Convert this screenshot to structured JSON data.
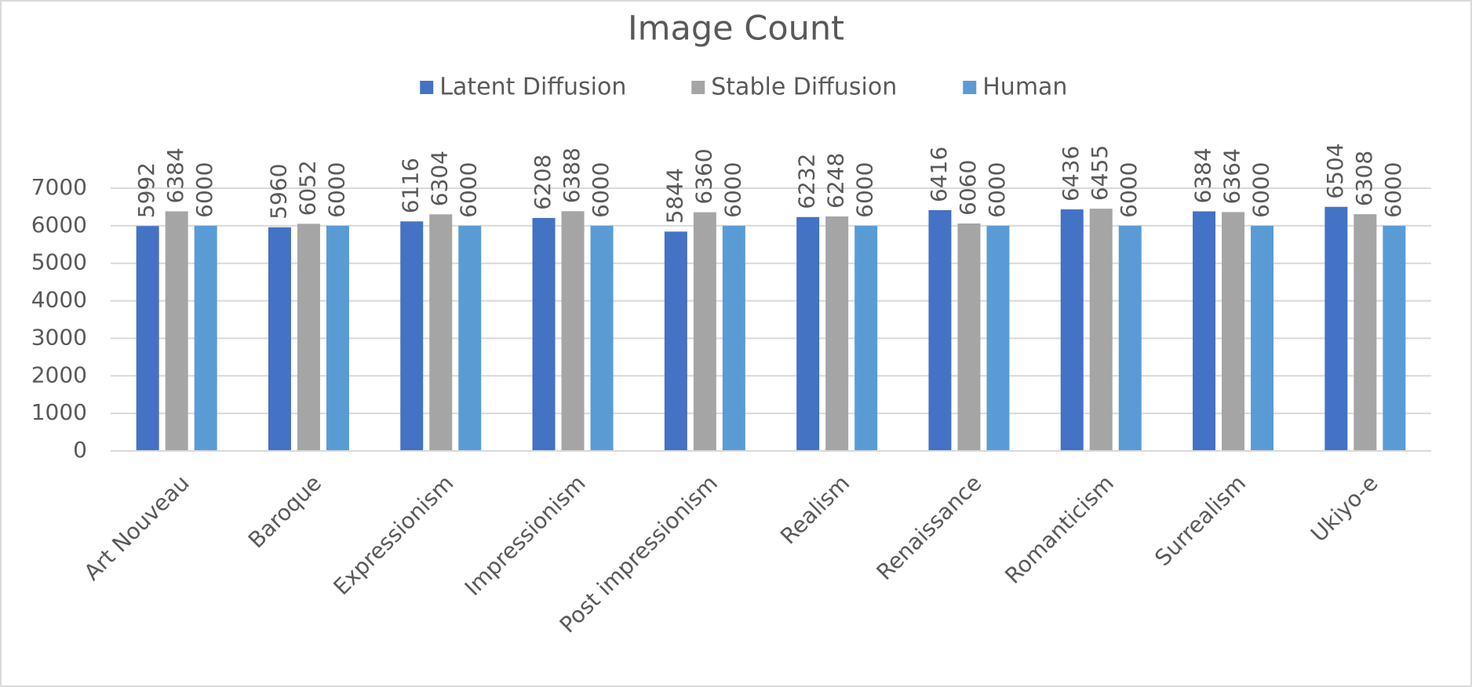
{
  "chart_data": {
    "type": "bar",
    "title": "Image Count",
    "categories": [
      "Art Nouveau",
      "Baroque",
      "Expressionism",
      "Impressionism",
      "Post impressionism",
      "Realism",
      "Renaissance",
      "Romanticism",
      "Surrealism",
      "Ukiyo-e"
    ],
    "series": [
      {
        "name": "Latent Diffusion",
        "color": "#4472c4",
        "values": [
          5992,
          5960,
          6116,
          6208,
          5844,
          6232,
          6416,
          6436,
          6384,
          6504
        ]
      },
      {
        "name": "Stable Diffusion",
        "color": "#a5a5a5",
        "values": [
          6384,
          6052,
          6304,
          6388,
          6360,
          6248,
          6060,
          6455,
          6364,
          6308
        ]
      },
      {
        "name": "Human",
        "color": "#5b9bd5",
        "values": [
          6000,
          6000,
          6000,
          6000,
          6000,
          6000,
          6000,
          6000,
          6000,
          6000
        ]
      }
    ],
    "ylim": [
      0,
      7000
    ],
    "yticks": [
      0,
      1000,
      2000,
      3000,
      4000,
      5000,
      6000,
      7000
    ],
    "grid": true,
    "legend": "top"
  }
}
